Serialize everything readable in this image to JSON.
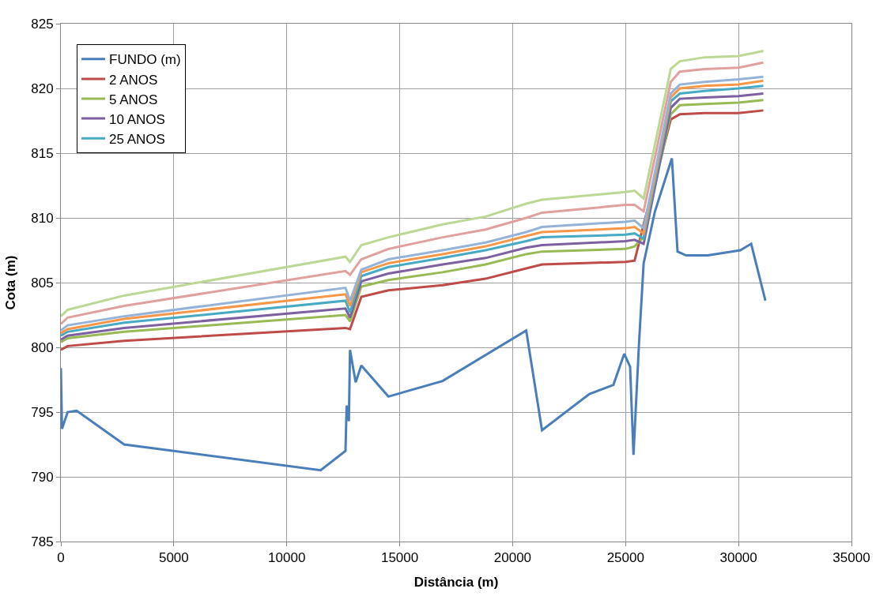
{
  "chart_data": {
    "type": "line",
    "xlabel": "Distância (m)",
    "ylabel": "Cota (m)",
    "x": [
      0,
      300,
      2800,
      12600,
      12800,
      13300,
      14500,
      16900,
      18800,
      20600,
      21300,
      25000,
      25400,
      25800,
      27000,
      27400,
      28500,
      30000,
      31100
    ],
    "series": [
      {
        "name": "FUNDO (m)",
        "color": "#4a7ebb",
        "x": [
          0,
          50,
          300,
          700,
          2800,
          11500,
          12600,
          12650,
          12750,
          12800,
          13050,
          13300,
          14500,
          16900,
          20600,
          21300,
          23400,
          24460,
          24940,
          25200,
          25350,
          25600,
          25800,
          26300,
          27050,
          27300,
          27680,
          28640,
          30080,
          30560,
          31190
        ],
        "values": [
          798.4,
          793.7,
          795.0,
          795.1,
          792.5,
          790.5,
          792.0,
          795.5,
          794.3,
          799.8,
          797.3,
          798.6,
          796.2,
          797.4,
          801.3,
          793.6,
          796.4,
          797.1,
          799.5,
          798.5,
          791.7,
          800.5,
          806.5,
          810.5,
          814.6,
          807.4,
          807.1,
          807.1,
          807.5,
          808.0,
          803.6
        ]
      },
      {
        "name": "2 ANOS",
        "color": "#be4b48",
        "values": [
          799.8,
          800.1,
          800.5,
          801.5,
          801.4,
          803.9,
          804.4,
          804.8,
          805.3,
          806.1,
          806.4,
          806.6,
          806.7,
          809.5,
          817.6,
          818.0,
          818.1,
          818.1,
          818.3
        ]
      },
      {
        "name": "5 ANOS",
        "color": "#98b954",
        "values": [
          800.4,
          800.7,
          801.2,
          802.5,
          802.0,
          804.7,
          805.2,
          805.8,
          806.4,
          807.2,
          807.4,
          807.6,
          807.8,
          808.5,
          818.0,
          818.7,
          818.8,
          818.9,
          819.1
        ]
      },
      {
        "name": "10 ANOS",
        "color": "#7d60a0",
        "values": [
          800.6,
          800.9,
          801.5,
          803.0,
          802.3,
          805.1,
          805.7,
          806.4,
          806.9,
          807.7,
          807.9,
          808.2,
          808.3,
          808.0,
          818.5,
          819.2,
          819.3,
          819.4,
          819.6
        ]
      },
      {
        "name": "25 ANOS",
        "color": "#46aac5",
        "values": [
          800.9,
          801.2,
          801.9,
          803.6,
          802.7,
          805.5,
          806.2,
          806.9,
          807.5,
          808.2,
          808.5,
          808.7,
          808.8,
          808.4,
          819.0,
          819.6,
          819.8,
          820.0,
          820.2
        ]
      },
      {
        "color": "#f79646",
        "values": [
          801.1,
          801.4,
          802.2,
          804.1,
          803.2,
          805.8,
          806.5,
          807.2,
          807.8,
          808.6,
          808.9,
          809.2,
          809.3,
          808.8,
          819.3,
          820.0,
          820.2,
          820.3,
          820.6
        ]
      },
      {
        "color": "#95b3d7",
        "values": [
          801.3,
          801.7,
          802.4,
          804.6,
          803.6,
          806.0,
          806.8,
          807.5,
          808.1,
          808.9,
          809.3,
          809.7,
          809.8,
          809.2,
          819.6,
          820.3,
          820.5,
          820.7,
          820.9
        ]
      },
      {
        "color": "#e0a09e",
        "values": [
          801.8,
          802.3,
          803.2,
          805.9,
          805.6,
          806.8,
          807.6,
          808.5,
          809.1,
          810.0,
          810.4,
          811.0,
          811.0,
          810.5,
          820.5,
          821.3,
          821.5,
          821.6,
          822.0
        ]
      },
      {
        "color": "#bcd894",
        "values": [
          802.4,
          802.9,
          804.0,
          807.0,
          806.6,
          807.9,
          808.5,
          809.5,
          810.1,
          811.1,
          811.4,
          812.0,
          812.1,
          811.5,
          821.5,
          822.1,
          822.4,
          822.5,
          822.9
        ]
      }
    ],
    "xlim": [
      0,
      35000
    ],
    "xticks": [
      0,
      5000,
      10000,
      15000,
      20000,
      25000,
      30000,
      35000
    ],
    "ylim": [
      785,
      825
    ],
    "yticks": [
      785,
      790,
      795,
      800,
      805,
      810,
      815,
      820,
      825
    ],
    "grid": true,
    "legend": "top left",
    "marker": "none",
    "line_style": "solid"
  }
}
